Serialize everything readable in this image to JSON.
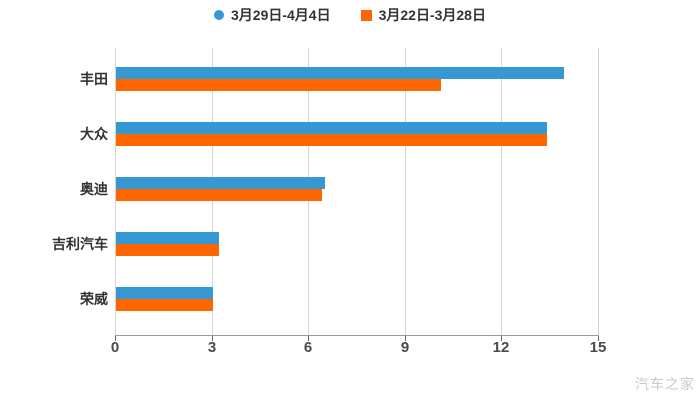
{
  "legend": {
    "items": [
      {
        "label": "3月29日-4月4日",
        "marker": "circle",
        "color": "#3598D3"
      },
      {
        "label": "3月22日-3月28日",
        "marker": "square",
        "color": "#FF6600"
      }
    ]
  },
  "chart_data": {
    "type": "bar",
    "orientation": "horizontal",
    "title": "",
    "xlabel": "",
    "ylabel": "",
    "categories": [
      "丰田",
      "大众",
      "奥迪",
      "吉利汽车",
      "荣威"
    ],
    "series": [
      {
        "name": "3月29日-4月4日",
        "color": "#3598D3",
        "values": [
          13.9,
          13.4,
          6.5,
          3.2,
          3.0
        ]
      },
      {
        "name": "3月22日-3月28日",
        "color": "#FF6600",
        "values": [
          10.1,
          13.4,
          6.4,
          3.2,
          3.0
        ]
      }
    ],
    "xlim": [
      0,
      15
    ],
    "x_ticks": [
      "0",
      "3",
      "6",
      "9",
      "12",
      "15"
    ],
    "grid": true,
    "legend_position": "top"
  },
  "watermark": "汽车之家",
  "colors": {
    "blue_series": "#3598D3",
    "orange_series": "#FF6600",
    "gridline": "#d4d4d4",
    "axis_line": "#9b9b9b",
    "tick_label": "#4a4a4a",
    "category_label": "#333333",
    "watermark": "#c9c9c9",
    "background": "#ffffff"
  }
}
